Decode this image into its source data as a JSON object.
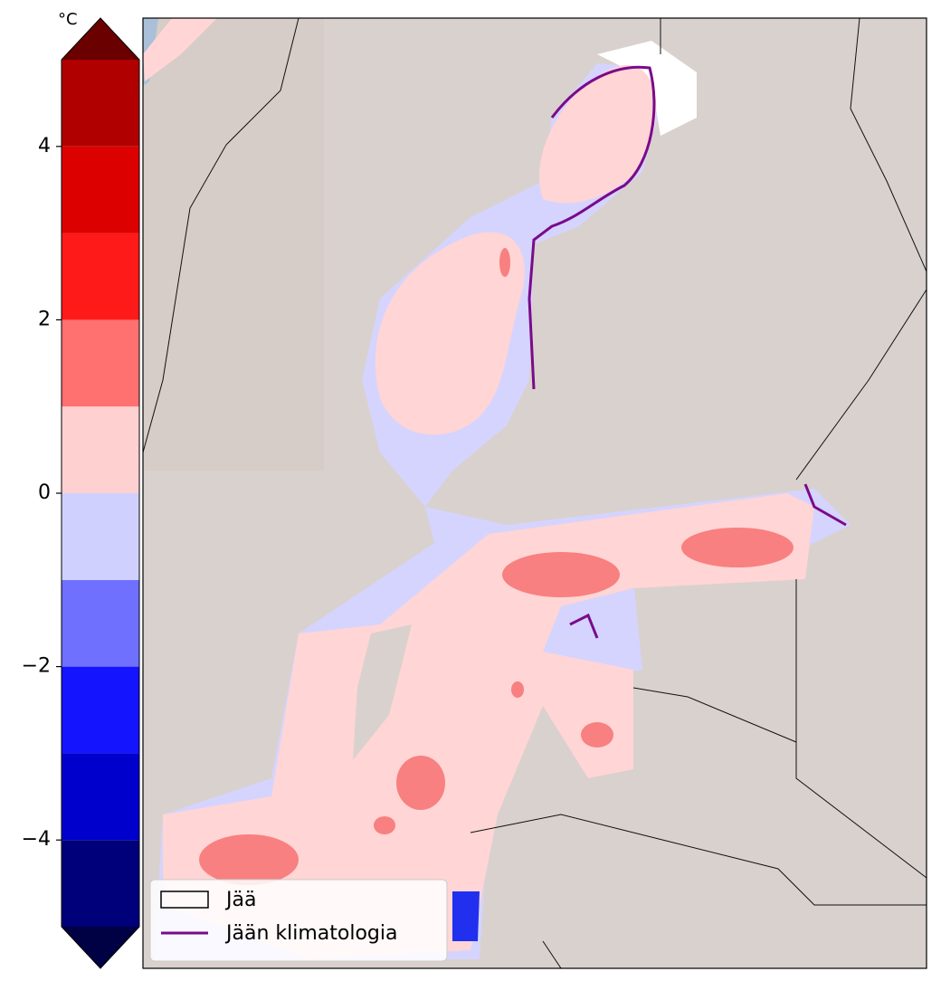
{
  "colorbar": {
    "unit": "°C",
    "levels": [
      -5,
      -4,
      -3,
      -2,
      -1,
      0,
      1,
      2,
      3,
      4,
      5
    ],
    "colors": [
      "#00007a",
      "#0000cc",
      "#1414ff",
      "#7070ff",
      "#d0d0ff",
      "#ffd0d0",
      "#ff7070",
      "#ff1a1a",
      "#dd0000",
      "#b00000"
    ],
    "under_color": "#000044",
    "over_color": "#6b0000",
    "ticks": [
      {
        "value": -4,
        "label": "−4"
      },
      {
        "value": -2,
        "label": "−2"
      },
      0,
      2,
      4
    ]
  },
  "legend": {
    "entries": [
      "Jää",
      "Jään klimatologia"
    ],
    "line_color": "#7a0a8a"
  }
}
